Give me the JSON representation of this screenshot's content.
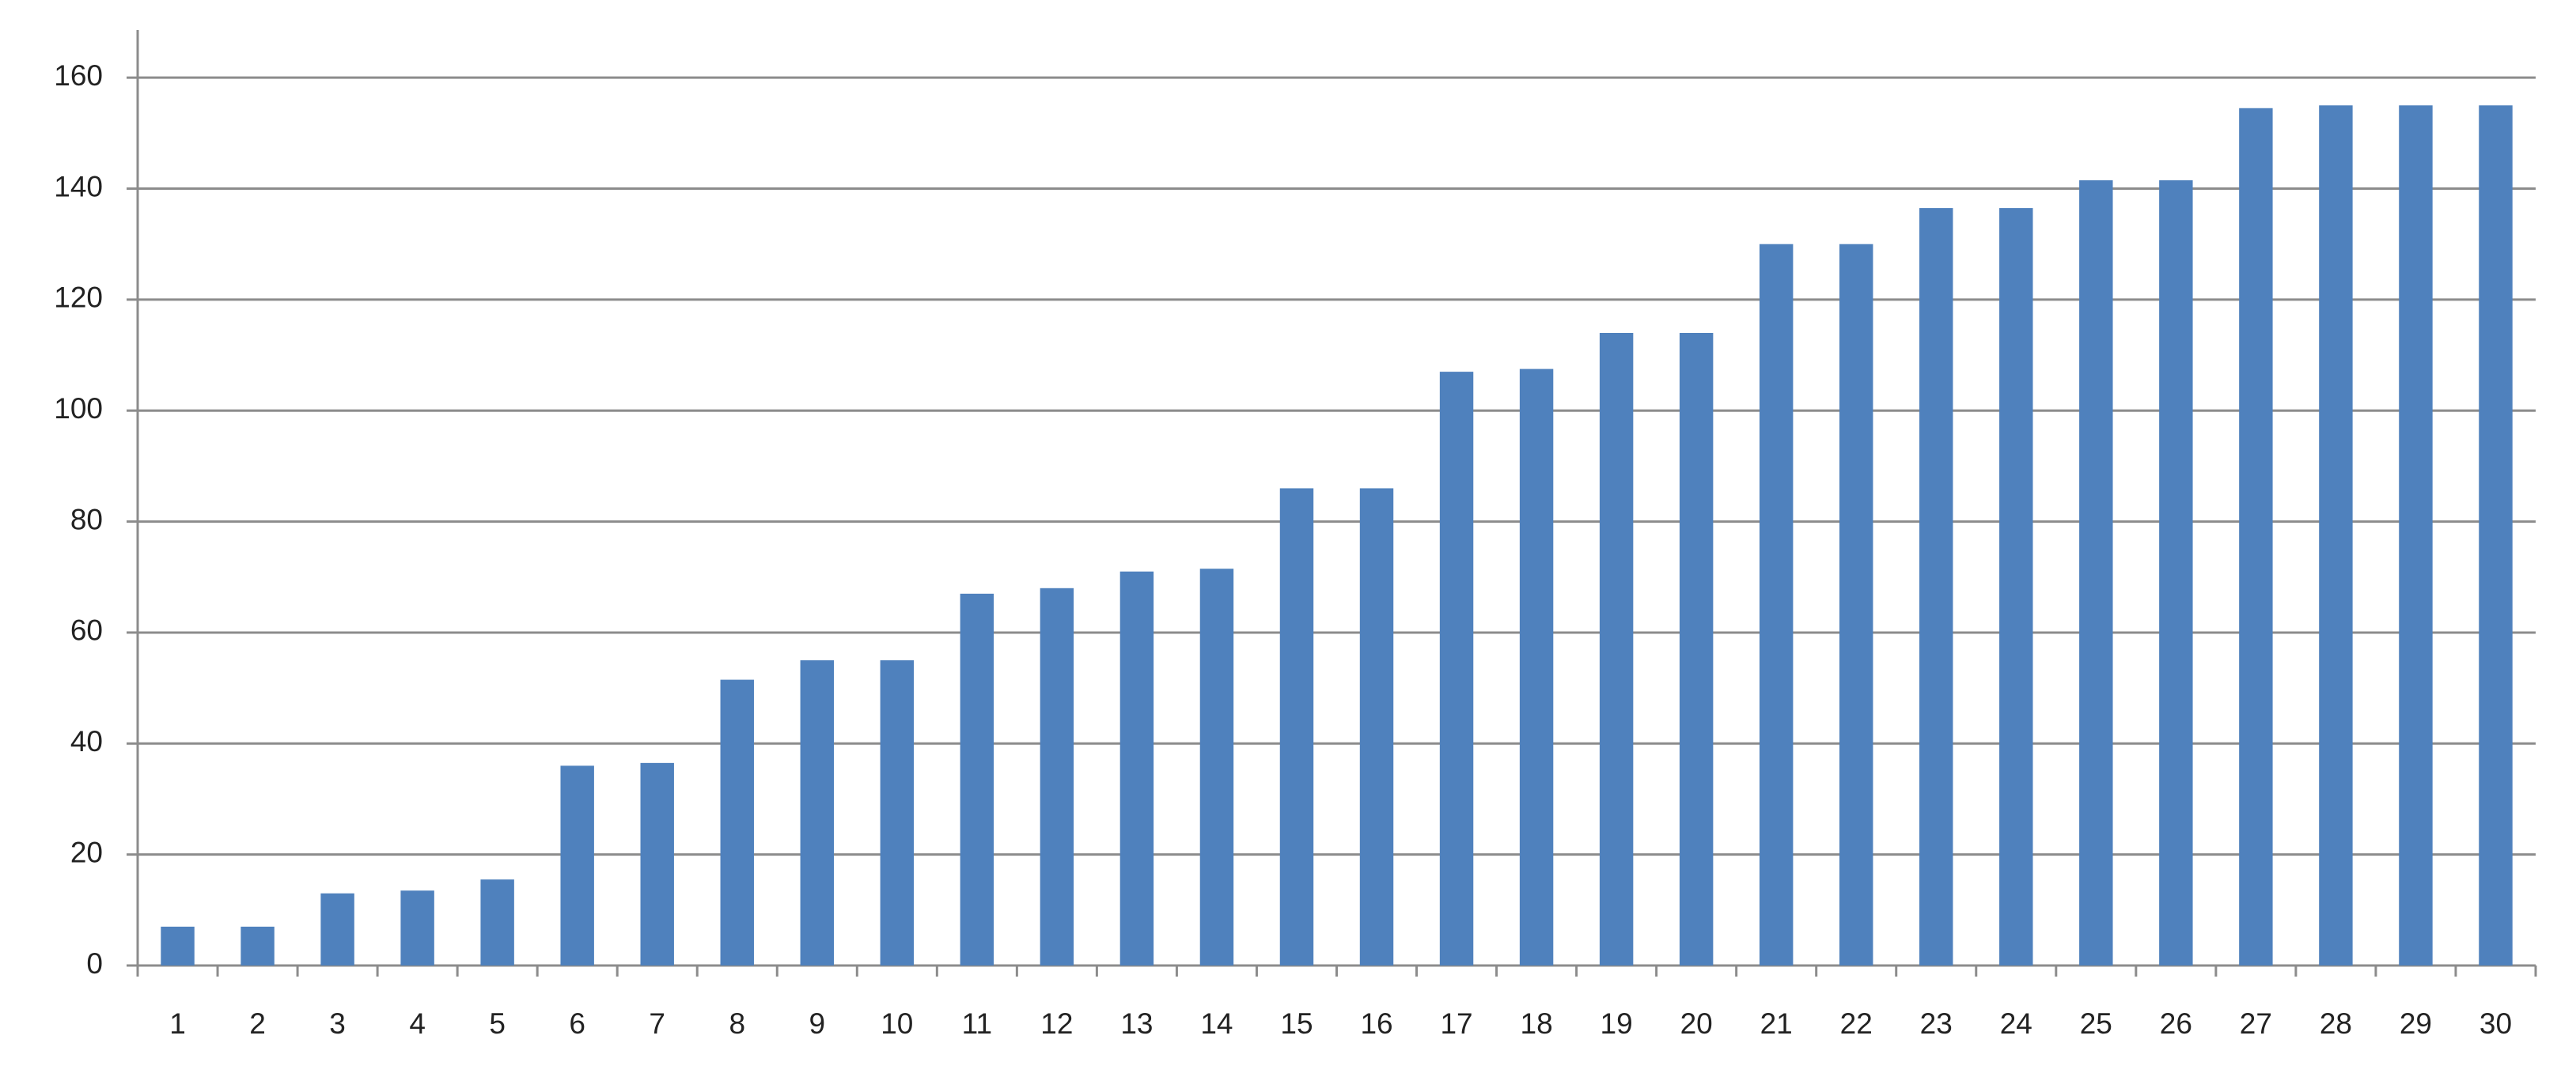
{
  "chart_data": {
    "type": "bar",
    "categories": [
      "1",
      "2",
      "3",
      "4",
      "5",
      "6",
      "7",
      "8",
      "9",
      "10",
      "11",
      "12",
      "13",
      "14",
      "15",
      "16",
      "17",
      "18",
      "19",
      "20",
      "21",
      "22",
      "23",
      "24",
      "25",
      "26",
      "27",
      "28",
      "29",
      "30"
    ],
    "values": [
      7,
      7,
      13,
      13.5,
      15.5,
      36,
      36.5,
      51.5,
      55,
      55,
      67,
      68,
      71,
      71.5,
      86,
      86,
      107,
      107.5,
      114,
      114,
      130,
      130,
      136.5,
      136.5,
      141.5,
      141.5,
      154.5,
      155,
      155,
      155
    ],
    "color": "#4f81bd",
    "ylim": [
      0,
      170
    ],
    "yticks": [
      0,
      20,
      40,
      60,
      80,
      100,
      120,
      140,
      160
    ],
    "grid": true
  }
}
